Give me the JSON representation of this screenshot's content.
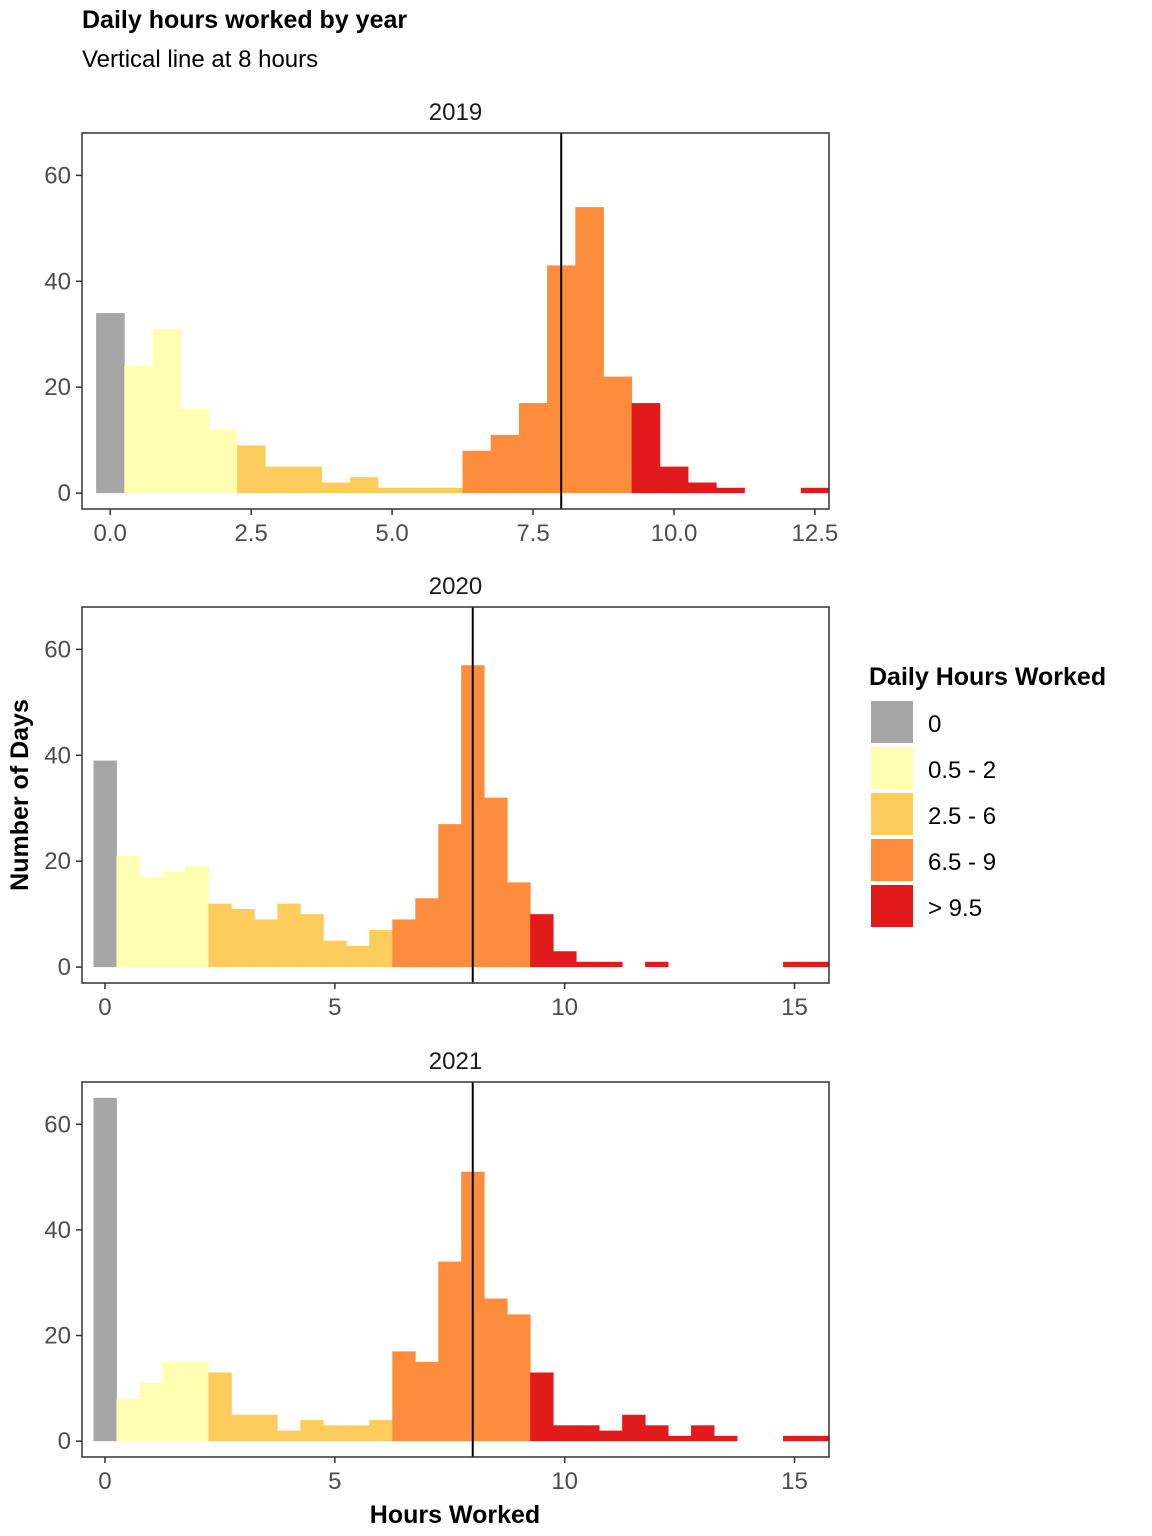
{
  "chart_data": {
    "type": "bar",
    "title": "Daily hours worked by year",
    "subtitle": "Vertical line at 8 hours",
    "xlabel": "Hours Worked",
    "ylabel": "Number of Days",
    "bin_width": 0.5,
    "reference_line": 8,
    "legend": {
      "title": "Daily Hours Worked",
      "position": "right",
      "items": [
        {
          "label": "0",
          "color": "#A6A6A6"
        },
        {
          "label": "0.5 - 2",
          "color": "#FFFFB2"
        },
        {
          "label": "2.5 - 6",
          "color": "#FECC5C"
        },
        {
          "label": "6.5 - 9",
          "color": "#FD8D3C"
        },
        {
          "label": "> 9.5",
          "color": "#E31A1C"
        }
      ]
    },
    "panels": [
      {
        "year": "2019",
        "xlim": [
          -0.5,
          12.75
        ],
        "ylim": [
          -3,
          68
        ],
        "xticks": [
          0,
          2.5,
          5,
          7.5,
          10,
          12.5
        ],
        "xtick_labels": [
          "0.0",
          "2.5",
          "5.0",
          "7.5",
          "10.0",
          "12.5"
        ],
        "yticks": [
          0,
          20,
          40,
          60
        ],
        "ytick_labels": [
          "0",
          "20",
          "40",
          "60"
        ],
        "x": [
          0,
          0.5,
          1,
          1.5,
          2,
          2.5,
          3,
          3.5,
          4,
          4.5,
          5,
          5.5,
          6,
          6.5,
          7,
          7.5,
          8,
          8.5,
          9,
          9.5,
          10,
          10.5,
          11,
          12.5
        ],
        "counts": [
          34,
          24,
          31,
          16,
          12,
          9,
          5,
          5,
          2,
          3,
          1,
          1,
          1,
          8,
          11,
          17,
          43,
          54,
          22,
          17,
          5,
          2,
          1,
          1
        ]
      },
      {
        "year": "2020",
        "xlim": [
          -0.5,
          15.75
        ],
        "ylim": [
          -3,
          68
        ],
        "xticks": [
          0,
          5,
          10,
          15
        ],
        "xtick_labels": [
          "0",
          "5",
          "10",
          "15"
        ],
        "yticks": [
          0,
          20,
          40,
          60
        ],
        "ytick_labels": [
          "0",
          "20",
          "40",
          "60"
        ],
        "x": [
          0,
          0.5,
          1,
          1.5,
          2,
          2.5,
          3,
          3.5,
          4,
          4.5,
          5,
          5.5,
          6,
          6.5,
          7,
          7.5,
          8,
          8.5,
          9,
          9.5,
          10,
          10.5,
          11,
          12,
          15,
          15.5
        ],
        "counts": [
          39,
          21,
          17,
          18,
          19,
          12,
          11,
          9,
          12,
          10,
          5,
          4,
          7,
          9,
          13,
          27,
          57,
          32,
          16,
          10,
          3,
          1,
          1,
          1,
          1,
          1
        ]
      },
      {
        "year": "2021",
        "xlim": [
          -0.5,
          15.75
        ],
        "ylim": [
          -3,
          68
        ],
        "xticks": [
          0,
          5,
          10,
          15
        ],
        "xtick_labels": [
          "0",
          "5",
          "10",
          "15"
        ],
        "yticks": [
          0,
          20,
          40,
          60
        ],
        "ytick_labels": [
          "0",
          "20",
          "40",
          "60"
        ],
        "x": [
          0,
          0.5,
          1,
          1.5,
          2,
          2.5,
          3,
          3.5,
          4,
          4.5,
          5,
          5.5,
          6,
          6.5,
          7,
          7.5,
          8,
          8.5,
          9,
          9.5,
          10,
          10.5,
          11,
          11.5,
          12,
          12.5,
          13,
          13.5,
          15,
          15.5
        ],
        "counts": [
          65,
          8,
          11,
          15,
          15,
          13,
          5,
          5,
          2,
          4,
          3,
          3,
          4,
          17,
          15,
          34,
          51,
          27,
          24,
          13,
          3,
          3,
          2,
          5,
          3,
          1,
          3,
          1,
          1,
          1
        ]
      }
    ]
  }
}
